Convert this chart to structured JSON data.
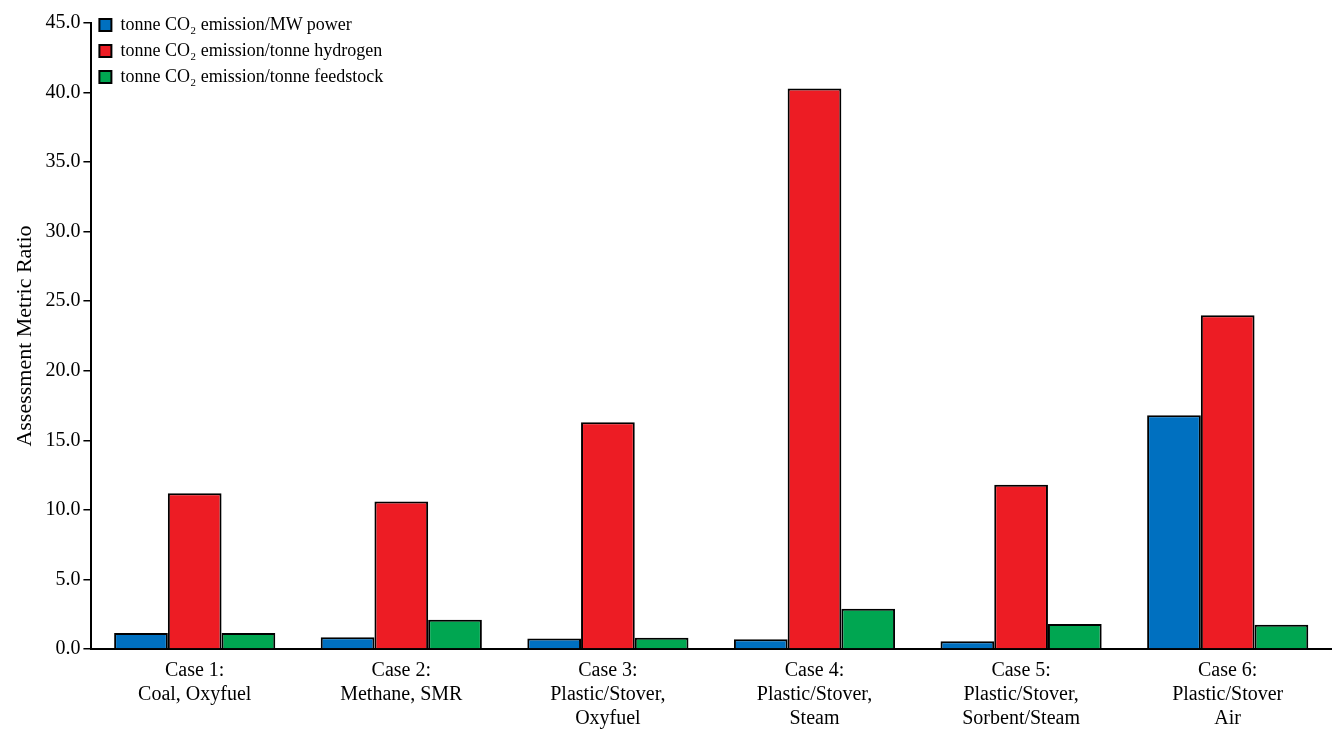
{
  "chart_data": {
    "type": "bar",
    "ylabel": "Assessment Metric Ratio",
    "categories": [
      "Case 1:\nCoal, Oxyfuel",
      "Case 2:\nMethane, SMR",
      "Case 3:\nPlastic/Stover,\nOxyfuel",
      "Case 4:\nPlastic/Stover,\nSteam",
      "Case 5:\nPlastic/Stover,\nSorbent/Steam",
      "Case 6:\nPlastic/Stover\nAir"
    ],
    "series": [
      {
        "name": "tonne CO₂ emission/MW power",
        "color": "#0070c0",
        "values": [
          1.15,
          0.85,
          0.75,
          0.7,
          0.55,
          16.8
        ]
      },
      {
        "name": "tonne CO₂ emission/tonne hydrogen",
        "color": "#ed1c24",
        "values": [
          11.2,
          10.6,
          16.3,
          40.3,
          11.8,
          24.0
        ]
      },
      {
        "name": "tonne CO₂ emission/tonne feedstock",
        "color": "#00a651",
        "values": [
          1.15,
          2.1,
          0.8,
          2.9,
          1.8,
          1.75
        ]
      }
    ],
    "ylim": [
      0,
      45
    ],
    "yticks": [
      {
        "value": 0,
        "label": "0.0"
      },
      {
        "value": 5,
        "label": "5.0"
      },
      {
        "value": 10,
        "label": "10.0"
      },
      {
        "value": 15,
        "label": "15.0"
      },
      {
        "value": 20,
        "label": "20.0"
      },
      {
        "value": 25,
        "label": "25.0"
      },
      {
        "value": 30,
        "label": "30.0"
      },
      {
        "value": 35,
        "label": "35.0"
      },
      {
        "value": 40,
        "label": "40.0"
      },
      {
        "value": 45,
        "label": "45.0"
      }
    ],
    "grid": false,
    "legend": "top left"
  }
}
